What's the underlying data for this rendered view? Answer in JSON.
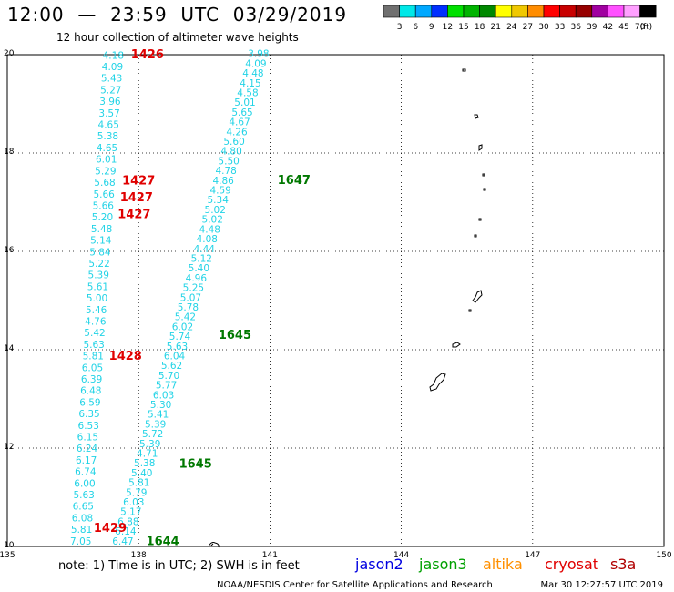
{
  "header": {
    "title": "12:00  —  23:59  UTC  03/29/2019",
    "subtitle": "12 hour collection of altimeter wave heights"
  },
  "legend": {
    "unit": "(ft)",
    "bins": [
      {
        "label": "3",
        "color": "#707070"
      },
      {
        "label": "6",
        "color": "#00e8e8"
      },
      {
        "label": "9",
        "color": "#00a8ff"
      },
      {
        "label": "12",
        "color": "#0030ff"
      },
      {
        "label": "15",
        "color": "#00e000"
      },
      {
        "label": "18",
        "color": "#00b400"
      },
      {
        "label": "21",
        "color": "#008800"
      },
      {
        "label": "24",
        "color": "#ffff00"
      },
      {
        "label": "27",
        "color": "#f0c800"
      },
      {
        "label": "30",
        "color": "#ff8c00"
      },
      {
        "label": "33",
        "color": "#ff0000"
      },
      {
        "label": "36",
        "color": "#c80000"
      },
      {
        "label": "39",
        "color": "#960000"
      },
      {
        "label": "42",
        "color": "#a000a0"
      },
      {
        "label": "45",
        "color": "#ff50ff"
      },
      {
        "label": "70",
        "color": "#ffa0ff"
      },
      {
        "label": "",
        "color": "#000000"
      }
    ]
  },
  "axes": {
    "lon_labels": [
      "135",
      "138",
      "141",
      "144",
      "147",
      "150"
    ],
    "lat_labels": [
      "20",
      "18",
      "16",
      "14",
      "12",
      "10"
    ]
  },
  "tracks": [
    {
      "name": "track-west",
      "color": "#22d3e6",
      "start": {
        "lon": 137.42,
        "lat": 19.92
      },
      "end": {
        "lon": 136.68,
        "lat": 10.04
      },
      "values": [
        "4.18",
        "4.09",
        "5.43",
        "5.27",
        "3.96",
        "3.57",
        "4.65",
        "5.38",
        "4.65",
        "6.01",
        "5.29",
        "5.68",
        "5.66",
        "5.66",
        "5.20",
        "5.48",
        "5.14",
        "5.84",
        "5.22",
        "5.39",
        "5.61",
        "5.00",
        "5.46",
        "4.76",
        "5.42",
        "5.63",
        "5.81",
        "6.05",
        "6.39",
        "6.48",
        "6.59",
        "6.35",
        "6.53",
        "6.15",
        "6.24",
        "6.17",
        "6.74",
        "6.00",
        "5.63",
        "6.65",
        "6.08",
        "5.81",
        "7.05"
      ]
    },
    {
      "name": "track-east",
      "color": "#22d3e6",
      "start": {
        "lon": 140.74,
        "lat": 19.95
      },
      "end": {
        "lon": 137.64,
        "lat": 10.04
      },
      "values": [
        "3.98",
        "4.09",
        "4.48",
        "4.15",
        "4.58",
        "5.01",
        "5.65",
        "4.67",
        "4.26",
        "5.60",
        "4.80",
        "5.50",
        "4.78",
        "4.86",
        "4.59",
        "5.34",
        "5.02",
        "5.02",
        "4.48",
        "4.08",
        "4.44",
        "5.12",
        "5.40",
        "4.96",
        "5.25",
        "5.07",
        "5.78",
        "5.42",
        "6.02",
        "5.74",
        "5.63",
        "6.04",
        "5.62",
        "5.70",
        "5.77",
        "6.03",
        "5.30",
        "5.41",
        "5.39",
        "5.72",
        "5.39",
        "4.71",
        "5.38",
        "5.40",
        "5.81",
        "5.79",
        "6.03",
        "5.17",
        "6.88",
        "6.14",
        "6.47"
      ]
    }
  ],
  "time_labels": [
    {
      "text": "1426",
      "color": "#e00000",
      "lon": 138.2,
      "lat": 19.93
    },
    {
      "text": "1427",
      "color": "#e00000",
      "lon": 138.0,
      "lat": 17.36
    },
    {
      "text": "1427",
      "color": "#e00000",
      "lon": 137.95,
      "lat": 17.02
    },
    {
      "text": "1427",
      "color": "#e00000",
      "lon": 137.9,
      "lat": 16.68
    },
    {
      "text": "1428",
      "color": "#e00000",
      "lon": 137.7,
      "lat": 13.8
    },
    {
      "text": "1429",
      "color": "#e00000",
      "lon": 137.35,
      "lat": 10.3
    },
    {
      "text": "1647",
      "color": "#007800",
      "lon": 141.55,
      "lat": 17.37
    },
    {
      "text": "1645",
      "color": "#007800",
      "lon": 140.2,
      "lat": 14.22
    },
    {
      "text": "1645",
      "color": "#007800",
      "lon": 139.3,
      "lat": 11.6
    },
    {
      "text": "1644",
      "color": "#007800",
      "lon": 138.55,
      "lat": 10.03
    }
  ],
  "footer": {
    "note": "note:  1) Time is in UTC;  2) SWH is in feet",
    "satellites": [
      {
        "name": "jason2",
        "color": "#0000e0"
      },
      {
        "name": "jason3",
        "color": "#00a000"
      },
      {
        "name": "altika",
        "color": "#ff9000"
      },
      {
        "name": "cryosat",
        "color": "#e00000"
      },
      {
        "name": "s3a",
        "color": "#b00000"
      }
    ],
    "credit": "NOAA/NESDIS Center for Satellite Applications and Research",
    "timestamp": "Mar 30 12:27:57 UTC 2019"
  }
}
